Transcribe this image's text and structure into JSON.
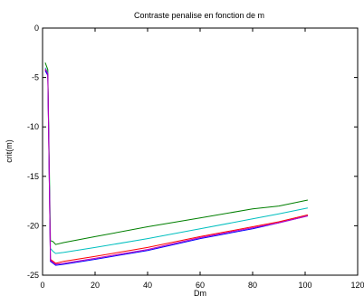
{
  "chart_data": {
    "type": "line",
    "title": "Contraste penalise en fonction de m",
    "xlabel": "Dm",
    "ylabel": "crit(m)",
    "xlim": [
      0,
      120
    ],
    "ylim": [
      -25,
      0
    ],
    "xticks": [
      0,
      20,
      40,
      60,
      80,
      100,
      120
    ],
    "yticks": [
      0,
      -5,
      -10,
      -15,
      -20,
      -25
    ],
    "grid": false,
    "legend": "none",
    "series": [
      {
        "color": "#007f00",
        "x": [
          1,
          2,
          3,
          4,
          5,
          8,
          20,
          40,
          60,
          80,
          90,
          101
        ],
        "y": [
          -3.5,
          -4.2,
          -21.5,
          -21.6,
          -21.9,
          -21.7,
          -21.1,
          -20.1,
          -19.2,
          -18.3,
          -18.0,
          -17.4
        ]
      },
      {
        "color": "#00bfbf",
        "x": [
          1,
          2,
          3,
          4,
          5,
          8,
          20,
          40,
          60,
          80,
          90,
          101
        ],
        "y": [
          -4.0,
          -4.5,
          -22.3,
          -22.6,
          -22.8,
          -22.7,
          -22.2,
          -21.3,
          -20.3,
          -19.3,
          -18.8,
          -18.2
        ]
      },
      {
        "color": "#ff0000",
        "x": [
          1,
          2,
          3,
          4,
          5,
          8,
          20,
          40,
          60,
          80,
          90,
          101
        ],
        "y": [
          -4.2,
          -4.7,
          -23.4,
          -23.6,
          -23.8,
          -23.6,
          -23.1,
          -22.2,
          -21.1,
          -20.1,
          -19.6,
          -18.9
        ]
      },
      {
        "color": "#0000ff",
        "x": [
          1,
          2,
          3,
          4,
          5,
          8,
          20,
          40,
          60,
          80,
          90,
          101
        ],
        "y": [
          -4.3,
          -4.8,
          -23.6,
          -23.8,
          -24.0,
          -23.9,
          -23.4,
          -22.5,
          -21.3,
          -20.3,
          -19.7,
          -19.0
        ]
      },
      {
        "color": "#bf00bf",
        "x": [
          1,
          2,
          3,
          4,
          5,
          8,
          20,
          40,
          60,
          80,
          90,
          101
        ],
        "y": [
          -4.1,
          -4.6,
          -23.5,
          -23.7,
          -23.9,
          -23.8,
          -23.3,
          -22.4,
          -21.2,
          -20.2,
          -19.7,
          -19.0
        ]
      }
    ]
  }
}
